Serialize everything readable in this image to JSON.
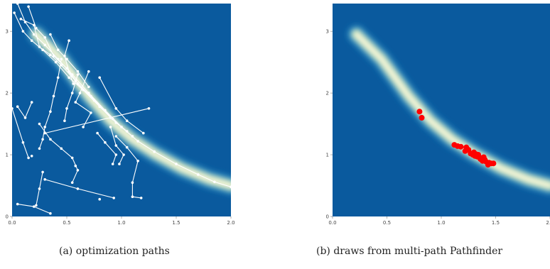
{
  "captions": {
    "a": "(a) optimization paths",
    "b": "(b) draws from multi-path Pathfinder"
  },
  "colors": {
    "background": "#0a5a9e",
    "density_ramp": [
      "#0a5a9e",
      "#1c79b5",
      "#3f9fc6",
      "#7cc7c6",
      "#c7e6b6",
      "#f2f7d0",
      "#fbf6df"
    ],
    "path_color": "#ffffff",
    "draw_color": "#ff0000"
  },
  "chart_data": [
    {
      "type": "scatter",
      "panel": "a",
      "xlabel": "",
      "ylabel": "",
      "xlim": [
        0.0,
        2.0
      ],
      "ylim": [
        0.0,
        3.45
      ],
      "x_ticks": [
        "0.0",
        "0.5",
        "1.0",
        "1.5",
        "2.0"
      ],
      "y_ticks": [
        "0",
        "1",
        "2",
        "3"
      ],
      "grid": false,
      "series": [
        {
          "points": [
            [
              0.05,
              3.45
            ],
            [
              0.12,
              3.15
            ],
            [
              0.2,
              2.95
            ],
            [
              0.3,
              2.78
            ],
            [
              0.42,
              2.55
            ],
            [
              0.55,
              2.3
            ],
            [
              0.7,
              2.0
            ],
            [
              0.85,
              1.72
            ],
            [
              1.0,
              1.45
            ],
            [
              1.15,
              1.22
            ],
            [
              1.3,
              1.05
            ],
            [
              1.5,
              0.85
            ],
            [
              1.7,
              0.68
            ],
            [
              1.85,
              0.56
            ],
            [
              2.0,
              0.48
            ]
          ]
        },
        {
          "points": [
            [
              0.02,
              3.3
            ],
            [
              0.1,
              3.0
            ],
            [
              0.18,
              2.85
            ],
            [
              0.28,
              2.7
            ],
            [
              0.4,
              2.5
            ],
            [
              0.52,
              2.25
            ],
            [
              0.65,
              2.05
            ],
            [
              0.8,
              1.78
            ],
            [
              0.95,
              1.52
            ],
            [
              1.1,
              1.3
            ]
          ]
        },
        {
          "points": [
            [
              0.15,
              3.4
            ],
            [
              0.22,
              3.05
            ],
            [
              0.3,
              2.9
            ],
            [
              0.38,
              2.6
            ],
            [
              0.5,
              2.4
            ],
            [
              0.6,
              2.15
            ],
            [
              0.72,
              1.95
            ],
            [
              0.9,
              1.6
            ],
            [
              1.05,
              1.38
            ]
          ]
        },
        {
          "points": [
            [
              0.08,
              3.2
            ],
            [
              0.2,
              3.1
            ],
            [
              0.25,
              2.75
            ],
            [
              0.35,
              2.62
            ],
            [
              0.45,
              2.45
            ],
            [
              0.58,
              2.2
            ],
            [
              0.75,
              1.88
            ],
            [
              0.92,
              1.58
            ]
          ]
        },
        {
          "points": [
            [
              0.35,
              2.95
            ],
            [
              0.42,
              2.7
            ],
            [
              0.5,
              2.55
            ],
            [
              0.6,
              2.35
            ],
            [
              0.7,
              2.1
            ]
          ]
        },
        {
          "points": [
            [
              0.45,
              2.55
            ],
            [
              0.42,
              2.25
            ],
            [
              0.38,
              1.95
            ],
            [
              0.35,
              1.7
            ],
            [
              0.3,
              1.45
            ],
            [
              0.28,
              1.25
            ],
            [
              0.25,
              1.1
            ]
          ]
        },
        {
          "points": [
            [
              0.6,
              2.3
            ],
            [
              0.55,
              2.0
            ],
            [
              0.5,
              1.75
            ],
            [
              0.48,
              1.55
            ]
          ]
        },
        {
          "points": [
            [
              0.25,
              1.5
            ],
            [
              0.35,
              1.25
            ],
            [
              0.45,
              1.1
            ],
            [
              0.55,
              0.95
            ],
            [
              0.6,
              0.75
            ],
            [
              0.55,
              0.55
            ]
          ]
        },
        {
          "points": [
            [
              0.3,
              1.35
            ],
            [
              1.25,
              1.75
            ]
          ]
        },
        {
          "points": [
            [
              0.18,
              1.85
            ],
            [
              0.12,
              1.6
            ],
            [
              0.05,
              1.78
            ]
          ]
        },
        {
          "points": [
            [
              0.0,
              1.75
            ],
            [
              0.1,
              1.2
            ],
            [
              0.15,
              0.95
            ]
          ]
        },
        {
          "points": [
            [
              0.05,
              0.2
            ],
            [
              0.2,
              0.16
            ],
            [
              0.35,
              0.05
            ]
          ]
        },
        {
          "points": [
            [
              0.3,
              0.6
            ],
            [
              0.6,
              0.45
            ],
            [
              0.93,
              0.3
            ]
          ]
        },
        {
          "points": [
            [
              0.95,
              1.3
            ],
            [
              1.05,
              1.12
            ],
            [
              1.15,
              0.9
            ],
            [
              1.1,
              0.55
            ],
            [
              1.1,
              0.32
            ],
            [
              1.18,
              0.3
            ]
          ]
        },
        {
          "points": [
            [
              0.28,
              0.72
            ],
            [
              0.25,
              0.45
            ],
            [
              0.22,
              0.18
            ]
          ]
        },
        {
          "points": [
            [
              0.7,
              2.35
            ],
            [
              0.62,
              2.0
            ],
            [
              0.58,
              1.85
            ],
            [
              0.72,
              1.68
            ],
            [
              0.65,
              1.45
            ]
          ]
        },
        {
          "points": [
            [
              0.52,
              2.85
            ],
            [
              0.48,
              2.6
            ],
            [
              0.52,
              2.35
            ],
            [
              0.56,
              2.15
            ]
          ]
        },
        {
          "points": [
            [
              0.8,
              2.25
            ],
            [
              0.95,
              1.75
            ],
            [
              1.05,
              1.55
            ],
            [
              1.2,
              1.35
            ]
          ]
        },
        {
          "points": [
            [
              0.9,
              1.45
            ],
            [
              0.95,
              1.15
            ],
            [
              1.02,
              1.0
            ],
            [
              0.98,
              0.85
            ]
          ]
        },
        {
          "points": [
            [
              0.78,
              1.35
            ],
            [
              0.85,
              1.2
            ],
            [
              0.95,
              1.0
            ],
            [
              0.92,
              0.85
            ]
          ]
        }
      ],
      "isolated_points": [
        [
          0.58,
          0.82
        ],
        [
          0.8,
          0.28
        ],
        [
          0.18,
          0.98
        ]
      ]
    },
    {
      "type": "scatter",
      "panel": "b",
      "xlabel": "",
      "ylabel": "",
      "xlim": [
        0.0,
        2.0
      ],
      "ylim": [
        0.0,
        3.45
      ],
      "x_ticks": [
        "0.0",
        "0.5",
        "1.0",
        "1.5",
        "2.0"
      ],
      "y_ticks": [
        "0",
        "1",
        "2",
        "3"
      ],
      "grid": false,
      "points": [
        [
          0.8,
          1.7
        ],
        [
          0.82,
          1.6
        ],
        [
          1.12,
          1.16
        ],
        [
          1.15,
          1.14
        ],
        [
          1.18,
          1.13
        ],
        [
          1.22,
          1.06
        ],
        [
          1.23,
          1.12
        ],
        [
          1.25,
          1.08
        ],
        [
          1.27,
          1.02
        ],
        [
          1.29,
          1.0
        ],
        [
          1.3,
          1.04
        ],
        [
          1.31,
          0.98
        ],
        [
          1.32,
          1.01
        ],
        [
          1.33,
          0.97
        ],
        [
          1.34,
          1.0
        ],
        [
          1.35,
          0.96
        ],
        [
          1.36,
          0.93
        ],
        [
          1.37,
          0.94
        ],
        [
          1.38,
          0.9
        ],
        [
          1.39,
          0.96
        ],
        [
          1.4,
          0.92
        ],
        [
          1.41,
          0.89
        ],
        [
          1.43,
          0.84
        ],
        [
          1.44,
          0.87
        ],
        [
          1.46,
          0.86
        ],
        [
          1.48,
          0.86
        ]
      ]
    }
  ]
}
